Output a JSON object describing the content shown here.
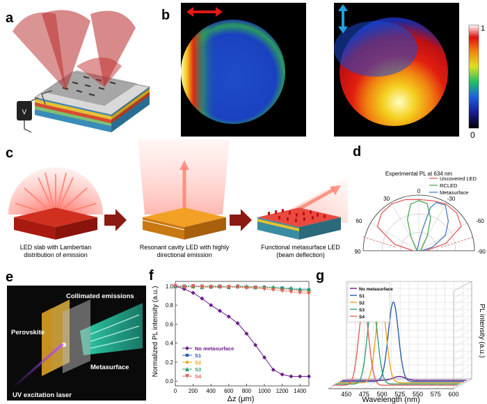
{
  "panels": {
    "a": {
      "letter": "a",
      "voltage_label": "V"
    },
    "b": {
      "letter": "b",
      "colorbar": {
        "max_label": "1",
        "min_label": "0"
      }
    },
    "c": {
      "letter": "c",
      "captions": [
        "LED slab with Lambertian",
        "distribution of emission",
        "Resonant cavity LED with highly",
        "directional emission",
        "Functional metasurface LED",
        "(beam deflection)"
      ]
    },
    "d": {
      "letter": "d"
    },
    "e": {
      "letter": "e",
      "labels": {
        "collimated": "Collimated emissions",
        "perovskite": "Perovskite",
        "metasurface": "Metasurface",
        "uv": "UV excitation laser"
      }
    },
    "f": {
      "letter": "f"
    },
    "g": {
      "letter": "g"
    }
  },
  "colors": {
    "led_red": "#c0180c",
    "arrow_dark": "#8b1a12",
    "rc_orange": "#f2a026",
    "no_meta": "#6a1a8a",
    "s1": "#2b5ca8",
    "s2": "#f0a020",
    "s3": "#2aa070",
    "s4": "#e0605a"
  },
  "chart_data": [
    {
      "id": "d",
      "type": "polar",
      "title": "Experimental PL at 634 nm",
      "angle_labels": [
        "0",
        "30",
        "-30",
        "60",
        "-60",
        "90",
        "-90"
      ],
      "series": [
        {
          "name": "Uncovered LED",
          "color": "#e05050",
          "theta": [
            -90,
            -75,
            -60,
            -45,
            -30,
            -15,
            0,
            15,
            30,
            45,
            60,
            75,
            90
          ],
          "r": [
            0.12,
            0.5,
            0.88,
            0.96,
            0.97,
            0.93,
            0.92,
            0.95,
            0.97,
            0.95,
            0.86,
            0.45,
            0.1
          ]
        },
        {
          "name": "RCLED",
          "color": "#3aa040",
          "theta": [
            -90,
            -60,
            -30,
            -20,
            -10,
            0,
            10,
            20,
            30,
            60,
            90
          ],
          "r": [
            0.02,
            0.05,
            0.3,
            0.62,
            0.86,
            0.9,
            0.85,
            0.6,
            0.28,
            0.05,
            0.02
          ]
        },
        {
          "name": "Metasurface",
          "color": "#3a70c0",
          "theta": [
            -90,
            -75,
            -60,
            -45,
            -30,
            -20,
            -15,
            -10,
            0,
            10,
            30,
            60,
            90
          ],
          "r": [
            0.05,
            0.25,
            0.55,
            0.75,
            0.95,
            0.92,
            0.8,
            0.4,
            0.15,
            0.08,
            0.05,
            0.04,
            0.02
          ]
        }
      ]
    },
    {
      "id": "f",
      "type": "line",
      "xlabel": "Δz (μm)",
      "ylabel": "Normalized PL intensity (a.u.)",
      "xlim": [
        0,
        1500
      ],
      "ylim": [
        -0.05,
        1.05
      ],
      "xticks": [
        "0",
        "200",
        "400",
        "600",
        "800",
        "1000",
        "1200",
        "1400"
      ],
      "yticks": [
        "0.0",
        "0.2",
        "0.4",
        "0.6",
        "0.8",
        "1.0"
      ],
      "x": [
        0,
        100,
        200,
        300,
        400,
        500,
        600,
        700,
        800,
        900,
        1000,
        1100,
        1200,
        1300,
        1400,
        1500
      ],
      "series": [
        {
          "name": "No metasurface",
          "color": "#6a1a8a",
          "marker": "diamond",
          "values": [
            1.0,
            0.97,
            0.93,
            0.87,
            0.8,
            0.74,
            0.68,
            0.61,
            0.5,
            0.38,
            0.25,
            0.12,
            0.07,
            0.05,
            0.05,
            0.05
          ]
        },
        {
          "name": "S1",
          "color": "#2b5ca8",
          "marker": "square",
          "values": [
            1.0,
            1.0,
            1.0,
            1.0,
            0.99,
            1.0,
            0.99,
            1.0,
            0.99,
            0.99,
            0.99,
            0.98,
            0.98,
            0.97,
            0.96,
            0.96
          ]
        },
        {
          "name": "S2",
          "color": "#f0a020",
          "marker": "circle",
          "values": [
            1.0,
            1.0,
            0.99,
            1.0,
            1.0,
            0.99,
            1.0,
            0.99,
            0.99,
            0.99,
            0.98,
            0.98,
            0.97,
            0.96,
            0.95,
            0.94
          ]
        },
        {
          "name": "S3",
          "color": "#2aa070",
          "marker": "triangle-up",
          "values": [
            1.0,
            1.0,
            1.0,
            0.99,
            1.0,
            1.0,
            0.99,
            1.0,
            1.0,
            0.99,
            0.99,
            0.99,
            0.98,
            0.98,
            0.97,
            0.97
          ]
        },
        {
          "name": "S4",
          "color": "#e0605a",
          "marker": "triangle-down",
          "values": [
            1.0,
            0.99,
            1.0,
            0.99,
            0.99,
            0.99,
            0.99,
            0.99,
            0.98,
            0.98,
            0.97,
            0.96,
            0.95,
            0.94,
            0.93,
            0.92
          ]
        }
      ]
    },
    {
      "id": "g",
      "type": "line",
      "xlabel": "Wavelength (nm)",
      "ylabel": "PL intensity (a.u.)",
      "xlim": [
        425,
        600
      ],
      "xticks": [
        "450",
        "475",
        "500",
        "525",
        "550",
        "575",
        "600"
      ],
      "series": [
        {
          "name": "No metasurface",
          "color": "#6a1a8a",
          "peak": 505,
          "amplitude": 0.04,
          "width": 12
        },
        {
          "name": "S1",
          "color": "#2b5ca8",
          "peak": 500,
          "amplitude": 0.82,
          "width": 10
        },
        {
          "name": "S2",
          "color": "#f0a020",
          "peak": 486,
          "amplitude": 0.85,
          "width": 10
        },
        {
          "name": "S3",
          "color": "#2aa070",
          "peak": 477,
          "amplitude": 0.83,
          "width": 10
        },
        {
          "name": "S4",
          "color": "#e0605a",
          "peak": 468,
          "amplitude": 0.82,
          "width": 10
        }
      ]
    }
  ]
}
